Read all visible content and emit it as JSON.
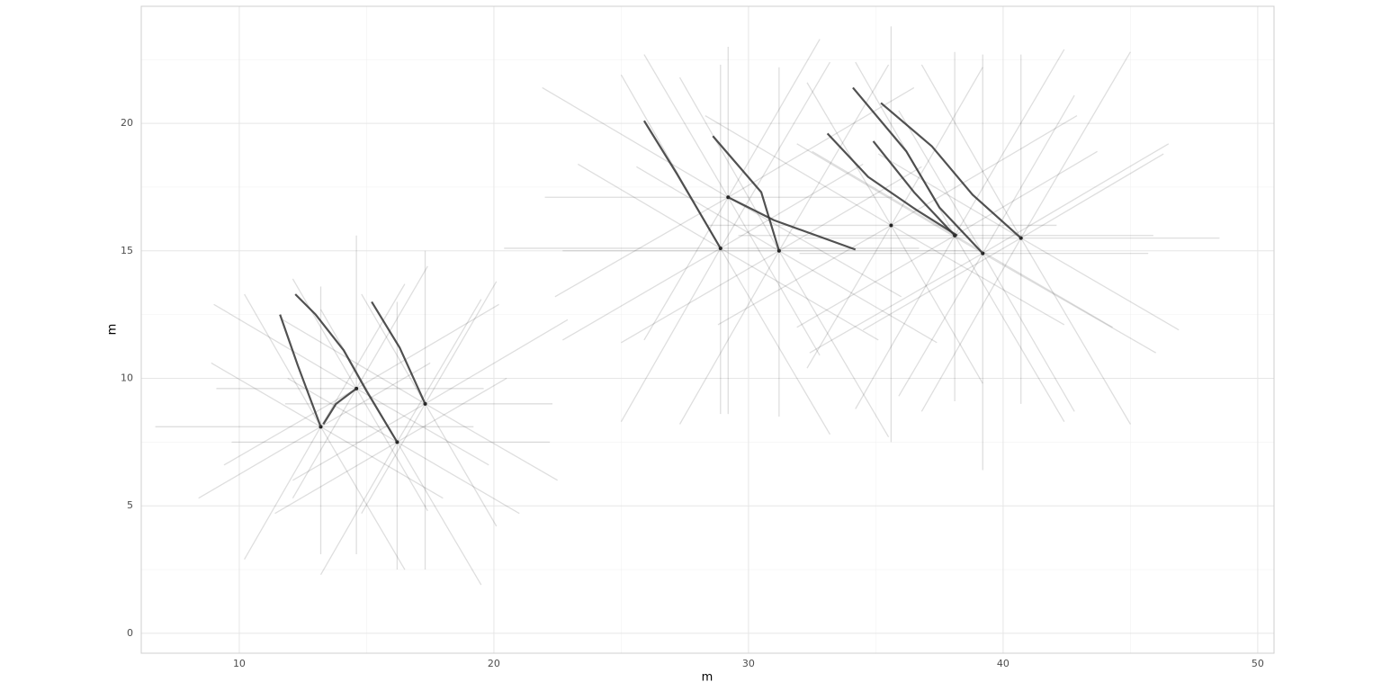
{
  "chart_data": {
    "type": "line",
    "x_label": "m",
    "y_label": "m",
    "xlim": [
      6.15,
      50.64
    ],
    "ylim": [
      -0.78,
      24.59
    ],
    "xticks": [
      10,
      20,
      30,
      40,
      50
    ],
    "yticks": [
      0,
      5,
      10,
      15,
      20
    ],
    "xminor": [
      15,
      25,
      35,
      45
    ],
    "yminor": [
      2.5,
      7.5,
      12.5,
      17.5,
      22.5
    ],
    "grid": true,
    "ray_color": "#000000",
    "series": [
      {
        "color": "#333333",
        "x": [
          11.6,
          12.3,
          13.2
        ],
        "y": [
          12.5,
          10.5,
          8.1
        ]
      },
      {
        "color": "#333333",
        "x": [
          12.2,
          13.0,
          14.1,
          15.0,
          16.2
        ],
        "y": [
          13.3,
          12.5,
          11.1,
          9.5,
          7.5
        ]
      },
      {
        "color": "#333333",
        "x": [
          15.2,
          16.3,
          17.3
        ],
        "y": [
          13.0,
          11.2,
          9.0
        ]
      },
      {
        "color": "#333333",
        "x": [
          13.3,
          13.8,
          14.6
        ],
        "y": [
          8.2,
          9.0,
          9.6
        ]
      },
      {
        "color": "#333333",
        "x": [
          25.9,
          27.2,
          28.9
        ],
        "y": [
          20.1,
          18.0,
          15.1
        ]
      },
      {
        "color": "#333333",
        "x": [
          28.6,
          30.5,
          31.2
        ],
        "y": [
          19.5,
          17.3,
          15.0
        ]
      },
      {
        "color": "#333333",
        "x": [
          29.2,
          31.0,
          34.2
        ],
        "y": [
          17.1,
          16.2,
          15.05
        ]
      },
      {
        "color": "#333333",
        "x": [
          33.1,
          34.7,
          36.6,
          38.2
        ],
        "y": [
          19.6,
          17.9,
          16.6,
          15.6
        ]
      },
      {
        "color": "#333333",
        "x": [
          34.1,
          36.2,
          37.5,
          39.2
        ],
        "y": [
          21.4,
          18.9,
          16.7,
          14.9
        ]
      },
      {
        "color": "#333333",
        "x": [
          34.9,
          36.5,
          38.1
        ],
        "y": [
          19.3,
          17.3,
          15.6
        ]
      },
      {
        "color": "#333333",
        "x": [
          35.2,
          37.2,
          38.8,
          40.7
        ],
        "y": [
          20.8,
          19.1,
          17.2,
          15.5
        ]
      }
    ],
    "spreads": [
      {
        "x": 13.2,
        "y": 8.1,
        "end_x": [
          19.2,
          17.5,
          16.5,
          13.2,
          10.2,
          8.9,
          6.7,
          8.4,
          10.2,
          13.2,
          16.5,
          18.0
        ],
        "end_y": [
          8.1,
          10.6,
          13.7,
          13.6,
          13.3,
          10.6,
          8.1,
          5.3,
          2.9,
          3.1,
          2.5,
          5.3
        ]
      },
      {
        "x": 14.6,
        "y": 9.6,
        "end_x": [
          19.6,
          20.2,
          17.4,
          14.6,
          12.1,
          9.0,
          9.1,
          9.4,
          12.1,
          14.6,
          17.4,
          19.8
        ],
        "end_y": [
          9.6,
          12.9,
          14.4,
          15.6,
          13.9,
          12.9,
          9.6,
          6.6,
          5.3,
          3.1,
          4.8,
          6.6
        ]
      },
      {
        "x": 16.2,
        "y": 7.5,
        "end_x": [
          22.2,
          20.5,
          19.5,
          16.2,
          13.2,
          11.9,
          9.7,
          11.4,
          13.2,
          16.2,
          19.5,
          21.0
        ],
        "end_y": [
          7.5,
          10.0,
          13.1,
          13.0,
          12.7,
          10.0,
          7.5,
          4.7,
          2.3,
          2.5,
          1.9,
          4.7
        ]
      },
      {
        "x": 17.3,
        "y": 9.0,
        "end_x": [
          22.3,
          22.9,
          20.1,
          17.3,
          14.8,
          11.7,
          11.8,
          12.1,
          14.8,
          17.3,
          20.1,
          22.5
        ],
        "end_y": [
          9.0,
          12.3,
          13.8,
          15.0,
          13.3,
          12.3,
          9.0,
          6.0,
          4.7,
          2.5,
          4.2,
          6.0
        ]
      },
      {
        "x": 28.9,
        "y": 15.1,
        "end_x": [
          36.7,
          34.5,
          33.2,
          28.9,
          25.0,
          23.3,
          20.4,
          22.7,
          25.0,
          28.9,
          33.2,
          35.1
        ],
        "end_y": [
          15.1,
          18.4,
          22.4,
          22.3,
          21.9,
          18.4,
          15.1,
          11.5,
          8.3,
          8.6,
          7.8,
          11.5
        ]
      },
      {
        "x": 29.2,
        "y": 17.1,
        "end_x": [
          35.7,
          36.5,
          32.8,
          29.2,
          25.9,
          21.9,
          22.0,
          22.4,
          25.9,
          29.2,
          32.8,
          36.0
        ],
        "end_y": [
          17.1,
          21.4,
          23.3,
          23.0,
          22.7,
          21.4,
          17.1,
          13.2,
          11.5,
          8.6,
          10.9,
          13.2
        ]
      },
      {
        "x": 31.2,
        "y": 15.0,
        "end_x": [
          39.0,
          36.8,
          35.5,
          31.2,
          27.3,
          25.6,
          22.7,
          25.0,
          27.3,
          31.2,
          35.5,
          37.4
        ],
        "end_y": [
          15.0,
          18.3,
          22.3,
          22.2,
          21.8,
          18.3,
          15.0,
          11.4,
          8.2,
          8.5,
          7.7,
          11.4
        ]
      },
      {
        "x": 35.6,
        "y": 16.0,
        "end_x": [
          42.1,
          42.9,
          39.2,
          35.6,
          32.3,
          28.3,
          28.4,
          28.8,
          32.3,
          35.6,
          39.2,
          42.4
        ],
        "end_y": [
          16.0,
          20.3,
          22.2,
          23.8,
          21.6,
          20.3,
          16.0,
          12.1,
          10.4,
          7.5,
          9.8,
          12.1
        ]
      },
      {
        "x": 38.1,
        "y": 15.6,
        "end_x": [
          45.9,
          43.7,
          42.4,
          38.1,
          34.2,
          32.5,
          29.6,
          31.9,
          34.2,
          38.1,
          42.4,
          44.3
        ],
        "end_y": [
          15.6,
          18.9,
          22.9,
          22.8,
          22.4,
          18.9,
          15.6,
          12.0,
          8.8,
          9.1,
          8.3,
          12.0
        ]
      },
      {
        "x": 39.2,
        "y": 14.9,
        "end_x": [
          45.7,
          46.5,
          42.8,
          39.2,
          35.9,
          31.9,
          32.0,
          32.4,
          35.9,
          39.2,
          42.8,
          46.0
        ],
        "end_y": [
          14.9,
          19.2,
          21.1,
          22.7,
          20.5,
          19.2,
          14.9,
          11.0,
          9.3,
          6.4,
          8.7,
          11.0
        ]
      },
      {
        "x": 40.7,
        "y": 15.5,
        "end_x": [
          48.5,
          46.3,
          45.0,
          40.7,
          36.8,
          35.1,
          32.2,
          34.5,
          36.8,
          40.7,
          45.0,
          46.9
        ],
        "end_y": [
          15.5,
          18.8,
          22.8,
          22.7,
          22.3,
          18.8,
          15.5,
          11.9,
          8.7,
          9.0,
          8.2,
          11.9
        ]
      }
    ]
  }
}
